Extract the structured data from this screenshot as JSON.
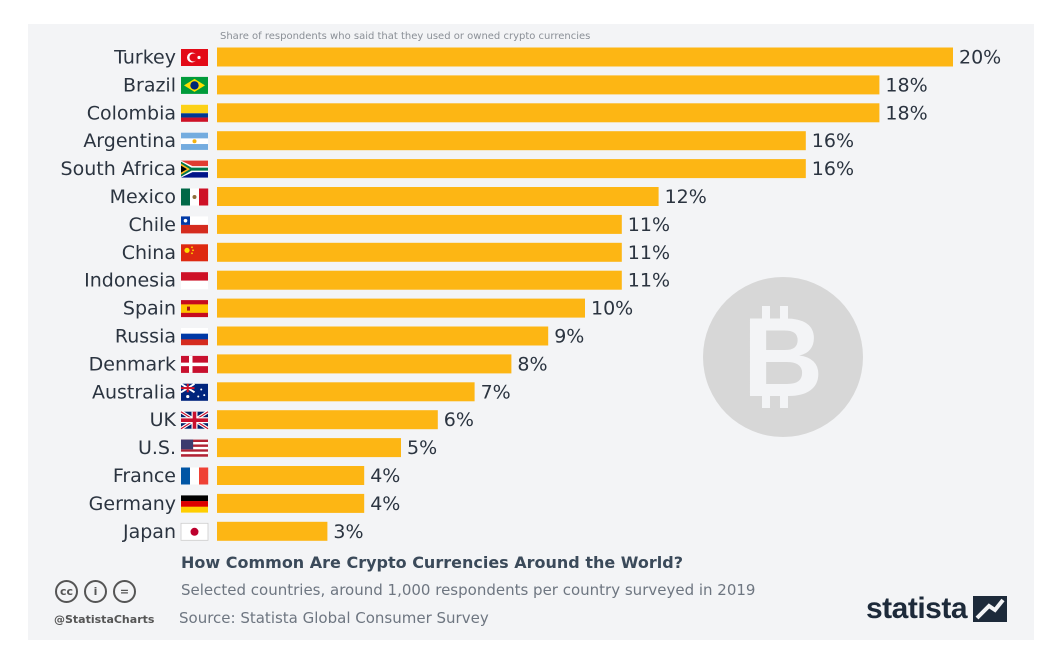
{
  "chart_data": {
    "type": "bar",
    "orientation": "horizontal",
    "title": "How Common Are Crypto Currencies Around the World?",
    "subtitle": "Selected countries, around 1,000 respondents per country surveyed in 2019",
    "note": "Share of respondents who said that they used or owned crypto currencies",
    "source": "Source: Statista Global Consumer Survey",
    "categories": [
      "Turkey",
      "Brazil",
      "Colombia",
      "Argentina",
      "South Africa",
      "Mexico",
      "Chile",
      "China",
      "Indonesia",
      "Spain",
      "Russia",
      "Denmark",
      "Australia",
      "UK",
      "U.S.",
      "France",
      "Germany",
      "Japan"
    ],
    "values": [
      20,
      18,
      18,
      16,
      16,
      12,
      11,
      11,
      11,
      10,
      9,
      8,
      7,
      6,
      5,
      4,
      4,
      3
    ],
    "value_labels": [
      "20%",
      "18%",
      "18%",
      "16%",
      "16%",
      "12%",
      "11%",
      "11%",
      "11%",
      "10%",
      "9%",
      "8%",
      "7%",
      "6%",
      "5%",
      "4%",
      "4%",
      "3%"
    ],
    "xlim": [
      0,
      20
    ],
    "grid": false,
    "legend": "none",
    "bar_color": "#fdb614"
  },
  "flags": [
    "turkey-flag-icon",
    "brazil-flag-icon",
    "colombia-flag-icon",
    "argentina-flag-icon",
    "south-africa-flag-icon",
    "mexico-flag-icon",
    "chile-flag-icon",
    "china-flag-icon",
    "indonesia-flag-icon",
    "spain-flag-icon",
    "russia-flag-icon",
    "denmark-flag-icon",
    "australia-flag-icon",
    "uk-flag-icon",
    "us-flag-icon",
    "france-flag-icon",
    "germany-flag-icon",
    "japan-flag-icon"
  ],
  "watermark_icon": "bitcoin-icon",
  "footer": {
    "handle": "@StatistaCharts",
    "license_icons": [
      "cc",
      "i",
      "="
    ],
    "logo": "statista"
  }
}
